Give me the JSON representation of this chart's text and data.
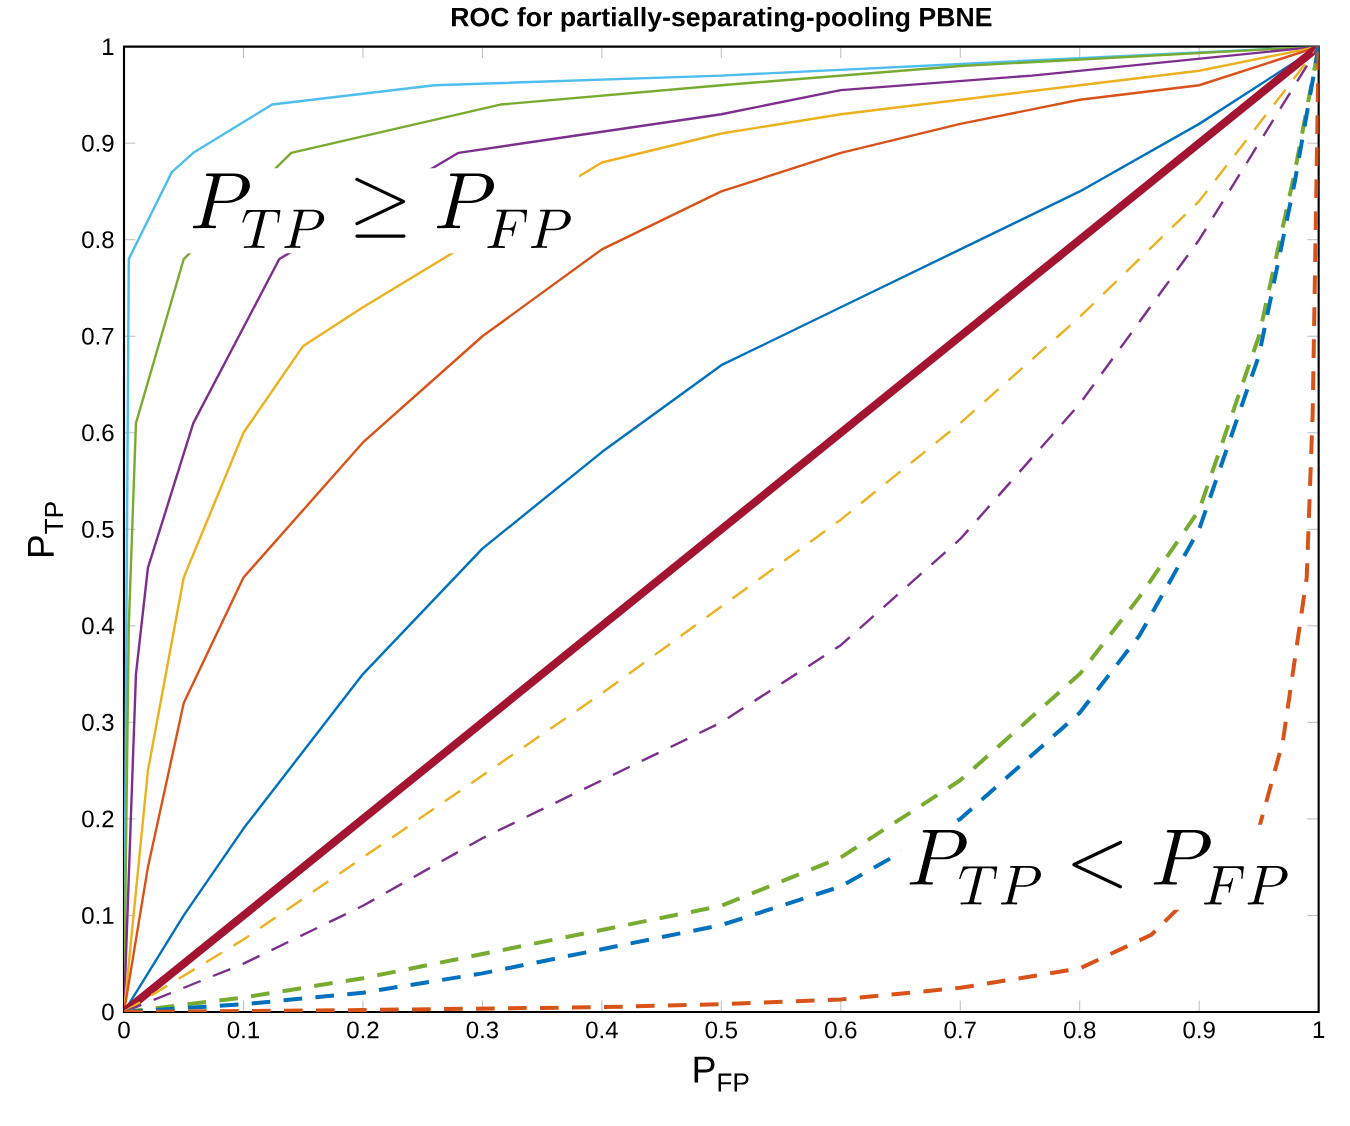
{
  "chart_data": {
    "type": "line",
    "title": "**ROC for partially-separating-pooling PBNE**",
    "xlabel": "P$_{FP}$",
    "ylabel": "P$_{TP}$",
    "xlim": [
      0,
      1
    ],
    "ylim": [
      0,
      1
    ],
    "xticks": [
      0,
      0.1,
      0.2,
      0.3,
      0.4,
      0.5,
      0.6,
      0.7,
      0.8,
      0.9,
      1
    ],
    "yticks": [
      0,
      0.1,
      0.2,
      0.3,
      0.4,
      0.5,
      0.6,
      0.7,
      0.8,
      0.9,
      1
    ],
    "annotations": [
      "P_{TP} \\geq P_{FP}",
      "P_{TP} < P_{FP}"
    ],
    "series": [
      {
        "color": "#4dbeee",
        "line_style": "solid",
        "x": [
          0,
          0.002,
          0.004,
          0.04,
          0.058,
          0.124,
          0.26,
          0.5,
          1
        ],
        "values": [
          0,
          0.4,
          0.78,
          0.87,
          0.89,
          0.94,
          0.96,
          0.97,
          1
        ]
      },
      {
        "color": "#77ac30",
        "line_style": "solid",
        "x": [
          0,
          0.004,
          0.01,
          0.05,
          0.14,
          0.315,
          0.5,
          0.7,
          1
        ],
        "values": [
          0,
          0.4,
          0.61,
          0.78,
          0.89,
          0.94,
          0.96,
          0.98,
          1
        ]
      },
      {
        "color": "#7e2f8e",
        "line_style": "solid",
        "x": [
          0,
          0.01,
          0.02,
          0.058,
          0.13,
          0.28,
          0.5,
          0.6,
          0.76,
          1
        ],
        "values": [
          0,
          0.35,
          0.46,
          0.61,
          0.78,
          0.89,
          0.93,
          0.955,
          0.97,
          1
        ]
      },
      {
        "color": "#edb120",
        "line_style": "solid",
        "x": [
          0,
          0.02,
          0.05,
          0.1,
          0.15,
          0.2,
          0.3,
          0.4,
          0.5,
          0.6,
          0.7,
          0.8,
          0.9,
          1
        ],
        "values": [
          0,
          0.25,
          0.45,
          0.6,
          0.69,
          0.73,
          null,
          0.88,
          0.91,
          0.93,
          0.945,
          0.96,
          0.975,
          1
        ]
      },
      {
        "color": "#d95319",
        "line_style": "solid",
        "x": [
          0,
          0.02,
          0.05,
          0.1,
          0.2,
          0.3,
          0.4,
          0.5,
          0.6,
          0.7,
          0.8,
          0.9,
          1
        ],
        "values": [
          0,
          0.15,
          0.32,
          0.45,
          0.59,
          0.7,
          0.79,
          0.85,
          0.89,
          0.92,
          0.945,
          0.96,
          1
        ]
      },
      {
        "color": "#0072bd",
        "line_style": "solid",
        "x": [
          0,
          0.05,
          0.1,
          0.2,
          0.3,
          0.4,
          0.5,
          0.6,
          0.7,
          0.8,
          0.9,
          1
        ],
        "values": [
          0,
          0.1,
          0.19,
          0.35,
          0.48,
          0.58,
          0.67,
          0.73,
          0.79,
          0.85,
          0.92,
          1
        ]
      },
      {
        "color": "#a2142f",
        "line_style": "solid",
        "x": [
          0,
          1
        ],
        "values": [
          0,
          1
        ]
      },
      {
        "color": "#edb120",
        "line_style": "dashed",
        "x": [
          0,
          0.1,
          0.2,
          0.3,
          0.4,
          0.5,
          0.6,
          0.7,
          0.8,
          0.9,
          1
        ],
        "values": [
          0,
          0.075,
          0.16,
          0.245,
          0.33,
          0.42,
          0.51,
          0.61,
          0.72,
          0.84,
          1
        ]
      },
      {
        "color": "#7e2f8e",
        "line_style": "dashed",
        "x": [
          0,
          0.1,
          0.2,
          0.3,
          0.4,
          0.5,
          0.6,
          0.7,
          0.8,
          0.9,
          1
        ],
        "values": [
          0,
          0.05,
          0.11,
          0.18,
          0.24,
          0.3,
          0.38,
          0.49,
          0.63,
          0.8,
          1
        ]
      },
      {
        "color": "#77ac30",
        "line_style": "dashed",
        "x": [
          0,
          0.1,
          0.2,
          0.3,
          0.4,
          0.5,
          0.6,
          0.7,
          0.8,
          0.85,
          0.9,
          0.95,
          0.98,
          1
        ],
        "values": [
          0,
          0.015,
          0.035,
          0.06,
          0.085,
          0.11,
          0.16,
          0.24,
          0.35,
          0.43,
          0.52,
          0.7,
          0.87,
          1
        ]
      },
      {
        "color": "#0072bd",
        "line_style": "dashed",
        "x": [
          0,
          0.1,
          0.2,
          0.3,
          0.4,
          0.5,
          0.6,
          0.7,
          0.8,
          0.85,
          0.9,
          0.95,
          0.98,
          1
        ],
        "values": [
          0,
          0.008,
          0.02,
          0.04,
          0.065,
          0.09,
          0.13,
          0.2,
          0.31,
          0.39,
          0.5,
          0.68,
          0.86,
          1
        ]
      },
      {
        "color": "#d95319",
        "line_style": "dashed",
        "x": [
          0,
          0.2,
          0.4,
          0.5,
          0.6,
          0.7,
          0.8,
          0.86,
          0.9,
          0.95,
          0.97,
          0.99,
          0.995,
          1
        ],
        "values": [
          0,
          0.002,
          0.005,
          0.008,
          0.013,
          0.025,
          0.045,
          0.08,
          null,
          0.19,
          0.28,
          0.45,
          0.62,
          1
        ]
      }
    ]
  }
}
